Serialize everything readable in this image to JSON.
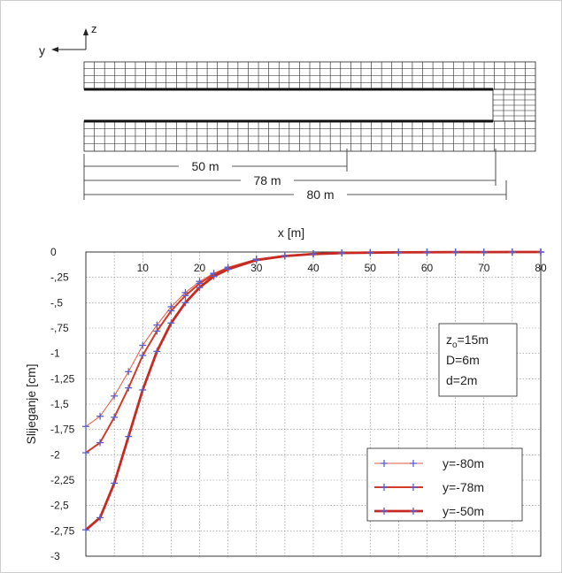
{
  "diagram": {
    "axis_y_label": "y",
    "axis_z_label": "z",
    "dimensions": [
      {
        "label": "50 m",
        "value": 50
      },
      {
        "label": "78 m",
        "value": 78
      },
      {
        "label": "80 m",
        "value": 80
      }
    ]
  },
  "chart_data": {
    "type": "line",
    "xlabel": "x [m]",
    "ylabel": "Slijeganje [cm]",
    "xlim": [
      0,
      80
    ],
    "ylim": [
      -3,
      0
    ],
    "x_ticks": [
      "10",
      "20",
      "30",
      "40",
      "50",
      "60",
      "70",
      "80"
    ],
    "y_ticks": [
      "0",
      "-,25",
      "-,5",
      "-,75",
      "-1",
      "-1,25",
      "-1,5",
      "-1,75",
      "-2",
      "-2,25",
      "-2,5",
      "-2,75",
      "-3"
    ],
    "grid": true,
    "annotation": {
      "zo": "z",
      "zo_sub": "o",
      "zo_rest": "=15m",
      "D": "D=6m",
      "d": "d=2m"
    },
    "legend_position": "bottom-right",
    "series": [
      {
        "name": "y=-80m",
        "color": "#e8553e",
        "x": [
          0,
          2.5,
          5,
          7.5,
          10,
          12.5,
          15,
          17.5,
          20,
          22.5,
          25,
          30,
          35,
          40,
          45,
          50,
          55,
          60,
          65,
          70,
          75,
          80
        ],
        "y": [
          -1.72,
          -1.62,
          -1.42,
          -1.18,
          -0.92,
          -0.72,
          -0.54,
          -0.4,
          -0.29,
          -0.21,
          -0.15,
          -0.07,
          -0.035,
          -0.018,
          -0.009,
          -0.005,
          -0.003,
          -0.002,
          -0.001,
          -0.001,
          0,
          0
        ]
      },
      {
        "name": "y=-78m",
        "color": "#d43a2a",
        "x": [
          0,
          2.5,
          5,
          7.5,
          10,
          12.5,
          15,
          17.5,
          20,
          22.5,
          25,
          30,
          35,
          40,
          45,
          50,
          55,
          60,
          65,
          70,
          75,
          80
        ],
        "y": [
          -1.98,
          -1.88,
          -1.63,
          -1.34,
          -1.02,
          -0.78,
          -0.58,
          -0.43,
          -0.31,
          -0.22,
          -0.16,
          -0.075,
          -0.037,
          -0.019,
          -0.01,
          -0.005,
          -0.003,
          -0.002,
          -0.001,
          -0.001,
          0,
          0
        ]
      },
      {
        "name": "y=-50m",
        "color": "#c62a22",
        "x": [
          0,
          2.5,
          5,
          7.5,
          10,
          12.5,
          15,
          17.5,
          20,
          22.5,
          25,
          30,
          35,
          40,
          45,
          50,
          55,
          60,
          65,
          70,
          75,
          80
        ],
        "y": [
          -2.74,
          -2.62,
          -2.28,
          -1.82,
          -1.36,
          -0.98,
          -0.7,
          -0.5,
          -0.35,
          -0.24,
          -0.17,
          -0.08,
          -0.04,
          -0.02,
          -0.01,
          -0.006,
          -0.003,
          -0.002,
          -0.001,
          -0.001,
          0,
          0
        ]
      }
    ]
  }
}
